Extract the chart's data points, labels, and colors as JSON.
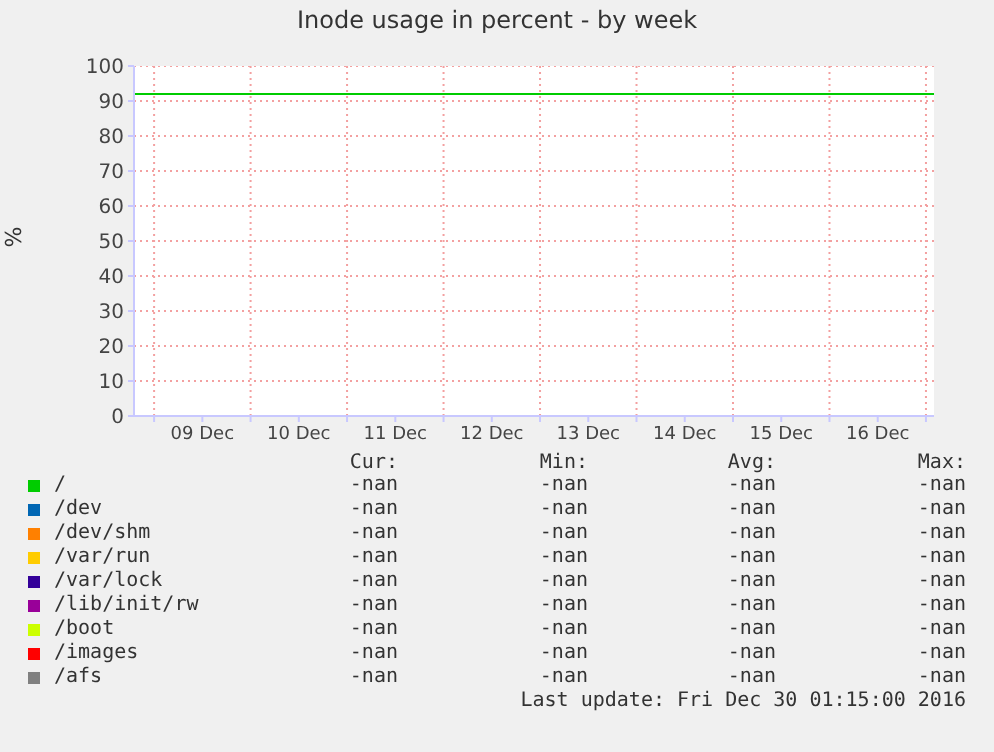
{
  "chart_data": {
    "type": "line",
    "title": "Inode usage in percent - by week",
    "ylabel": "%",
    "series": [
      {
        "name": "/",
        "color": "#00cc00",
        "x": [
          "2016-12-08T19:00",
          "2016-12-17T02:00"
        ],
        "values": [
          92,
          92
        ]
      },
      {
        "name": "/dev",
        "color": "#0066b3"
      },
      {
        "name": "/dev/shm",
        "color": "#ff8000"
      },
      {
        "name": "/var/run",
        "color": "#ffcc00"
      },
      {
        "name": "/var/lock",
        "color": "#330099"
      },
      {
        "name": "/lib/init/rw",
        "color": "#990099"
      },
      {
        "name": "/boot",
        "color": "#ccff00"
      },
      {
        "name": "/images",
        "color": "#ff0000"
      },
      {
        "name": "/afs",
        "color": "#808080"
      }
    ],
    "xlim": [
      "2016-12-08T19:00",
      "2016-12-17T02:00"
    ],
    "xticks": [
      {
        "value": "2016-12-09T00:00",
        "label": null
      },
      {
        "value": "2016-12-09T12:00",
        "label": "09 Dec"
      },
      {
        "value": "2016-12-10T00:00",
        "label": null
      },
      {
        "value": "2016-12-10T12:00",
        "label": "10 Dec"
      },
      {
        "value": "2016-12-11T00:00",
        "label": null
      },
      {
        "value": "2016-12-11T12:00",
        "label": "11 Dec"
      },
      {
        "value": "2016-12-12T00:00",
        "label": null
      },
      {
        "value": "2016-12-12T12:00",
        "label": "12 Dec"
      },
      {
        "value": "2016-12-13T00:00",
        "label": null
      },
      {
        "value": "2016-12-13T12:00",
        "label": "13 Dec"
      },
      {
        "value": "2016-12-14T00:00",
        "label": null
      },
      {
        "value": "2016-12-14T12:00",
        "label": "14 Dec"
      },
      {
        "value": "2016-12-15T00:00",
        "label": null
      },
      {
        "value": "2016-12-15T12:00",
        "label": "15 Dec"
      },
      {
        "value": "2016-12-16T00:00",
        "label": null
      },
      {
        "value": "2016-12-16T12:00",
        "label": "16 Dec"
      },
      {
        "value": "2016-12-17T00:00",
        "label": null
      }
    ],
    "ylim": [
      0,
      100
    ],
    "yticks": [
      0,
      10,
      20,
      30,
      40,
      50,
      60,
      70,
      80,
      90,
      100
    ],
    "grid": true,
    "legend": "bottom",
    "annotations": [
      "Cur:",
      "Min:",
      "Avg:",
      "Max:",
      "-nan",
      "Last update: Fri Dec 30 01:15:00 2016"
    ]
  }
}
